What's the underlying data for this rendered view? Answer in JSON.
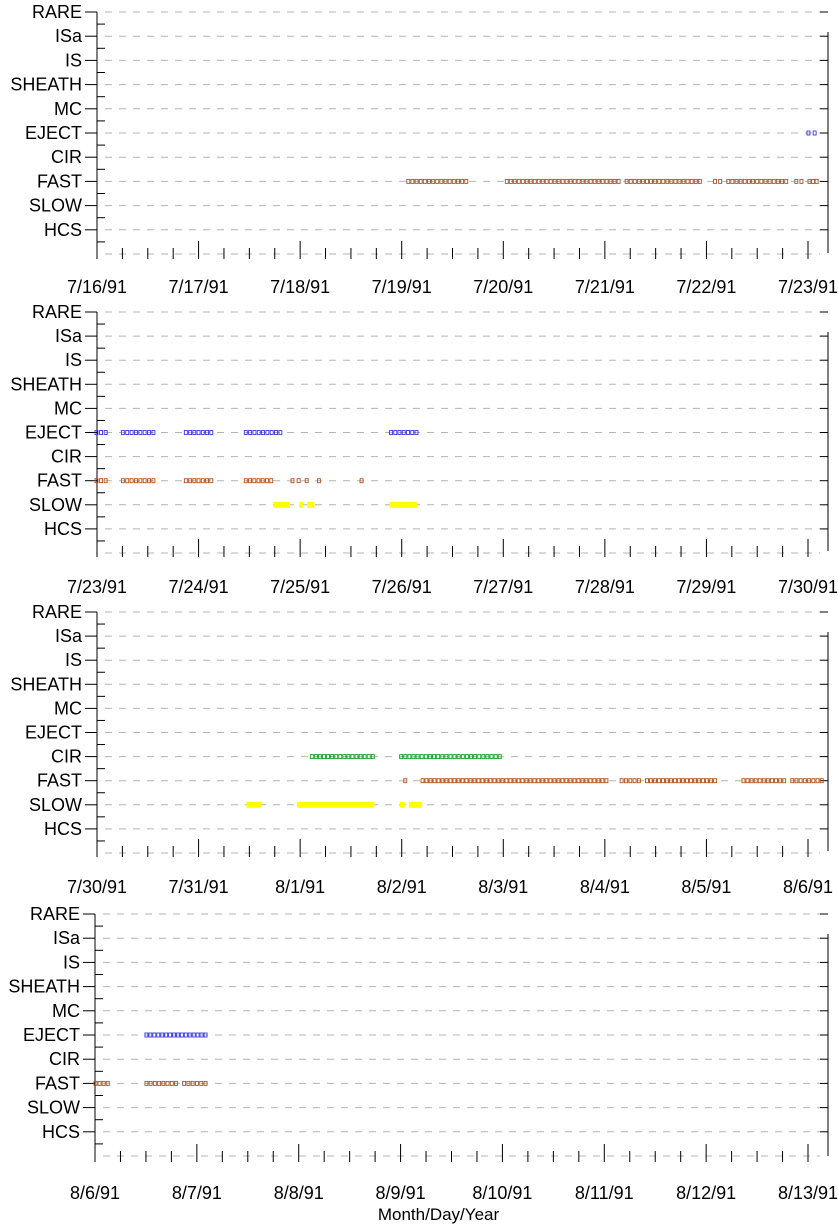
{
  "chart_data": [
    {
      "type": "scatter",
      "x_start": "7/16/91",
      "x_end": "7/23/91",
      "x_tick_labels": [
        "7/16/91",
        "7/17/91",
        "7/18/91",
        "7/19/91",
        "7/20/91",
        "7/21/91",
        "7/22/91",
        "7/23/91"
      ],
      "y_categories": [
        "RARE",
        "ISa",
        "IS",
        "SHEATH",
        "MC",
        "EJECT",
        "CIR",
        "FAST",
        "SLOW",
        "HCS"
      ],
      "grid": true,
      "segments": [
        {
          "category": "EJECT",
          "from": 6.99,
          "to": 7.08
        },
        {
          "category": "FAST",
          "from": 3.05,
          "to": 3.65
        },
        {
          "category": "FAST",
          "from": 4.02,
          "to": 5.15
        },
        {
          "category": "FAST",
          "from": 5.2,
          "to": 5.95
        },
        {
          "category": "FAST",
          "from": 6.07,
          "to": 6.15
        },
        {
          "category": "FAST",
          "from": 6.2,
          "to": 6.8
        },
        {
          "category": "FAST",
          "from": 6.87,
          "to": 6.95
        },
        {
          "category": "FAST",
          "from": 7.0,
          "to": 7.1
        }
      ]
    },
    {
      "type": "scatter",
      "x_start": "7/23/91",
      "x_end": "7/30/91",
      "x_tick_labels": [
        "7/23/91",
        "7/24/91",
        "7/25/91",
        "7/26/91",
        "7/27/91",
        "7/28/91",
        "7/29/91",
        "7/30/91"
      ],
      "y_categories": [
        "RARE",
        "ISa",
        "IS",
        "SHEATH",
        "MC",
        "EJECT",
        "CIR",
        "FAST",
        "SLOW",
        "HCS"
      ],
      "grid": true,
      "segments": [
        {
          "category": "EJECT",
          "from": -0.02,
          "to": 0.1
        },
        {
          "category": "EJECT",
          "from": 0.24,
          "to": 0.57
        },
        {
          "category": "EJECT",
          "from": 0.86,
          "to": 1.14
        },
        {
          "category": "EJECT",
          "from": 1.45,
          "to": 1.82
        },
        {
          "category": "EJECT",
          "from": 2.88,
          "to": 3.16
        },
        {
          "category": "FAST",
          "from": -0.02,
          "to": 0.1
        },
        {
          "category": "FAST",
          "from": 0.24,
          "to": 0.57
        },
        {
          "category": "FAST",
          "from": 0.86,
          "to": 1.14
        },
        {
          "category": "FAST",
          "from": 1.45,
          "to": 1.73
        },
        {
          "category": "FAST",
          "from": 1.91,
          "to": 2.0
        },
        {
          "category": "FAST",
          "from": 2.05,
          "to": 2.07
        },
        {
          "category": "FAST",
          "from": 2.17,
          "to": 2.19
        },
        {
          "category": "FAST",
          "from": 2.59,
          "to": 2.61
        },
        {
          "category": "SLOW",
          "from": 1.74,
          "to": 1.9
        },
        {
          "category": "SLOW",
          "from": 1.99,
          "to": 2.03
        },
        {
          "category": "SLOW",
          "from": 2.07,
          "to": 2.14
        },
        {
          "category": "SLOW",
          "from": 2.88,
          "to": 3.15
        }
      ]
    },
    {
      "type": "scatter",
      "x_start": "7/30/91",
      "x_end": "8/6/91",
      "x_tick_labels": [
        "7/30/91",
        "7/31/91",
        "8/1/91",
        "8/2/91",
        "8/3/91",
        "8/4/91",
        "8/5/91",
        "8/6/91"
      ],
      "y_categories": [
        "RARE",
        "ISa",
        "IS",
        "SHEATH",
        "MC",
        "EJECT",
        "CIR",
        "FAST",
        "SLOW",
        "HCS"
      ],
      "grid": true,
      "segments": [
        {
          "category": "CIR",
          "from": 2.1,
          "to": 2.73
        },
        {
          "category": "CIR",
          "from": 2.98,
          "to": 3.98
        },
        {
          "category": "FAST",
          "from": 3.02,
          "to": 3.05
        },
        {
          "category": "FAST",
          "from": 3.19,
          "to": 5.03
        },
        {
          "category": "FAST",
          "from": 5.15,
          "to": 5.35
        },
        {
          "category": "FAST",
          "from": 5.4,
          "to": 6.1
        },
        {
          "category": "FAST",
          "from": 6.35,
          "to": 6.78
        },
        {
          "category": "FAST",
          "from": 6.83,
          "to": 7.15
        },
        {
          "category": "SLOW",
          "from": 1.47,
          "to": 1.62
        },
        {
          "category": "SLOW",
          "from": 1.97,
          "to": 2.73
        },
        {
          "category": "SLOW",
          "from": 2.98,
          "to": 3.03
        },
        {
          "category": "SLOW",
          "from": 3.07,
          "to": 3.2
        }
      ]
    },
    {
      "type": "scatter",
      "x_start": "8/6/91",
      "x_end": "8/13/91",
      "x_tick_labels": [
        "8/6/91",
        "8/7/91",
        "8/8/91",
        "8/9/91",
        "8/10/91",
        "8/11/91",
        "8/12/91",
        "8/13/91"
      ],
      "y_categories": [
        "RARE",
        "ISa",
        "IS",
        "SHEATH",
        "MC",
        "EJECT",
        "CIR",
        "FAST",
        "SLOW",
        "HCS"
      ],
      "grid": true,
      "xlabel": "Month/Day/Year",
      "segments": [
        {
          "category": "EJECT",
          "from": 0.49,
          "to": 1.1
        },
        {
          "category": "FAST",
          "from": -0.01,
          "to": 0.14
        },
        {
          "category": "FAST",
          "from": 0.49,
          "to": 0.81
        },
        {
          "category": "FAST",
          "from": 0.86,
          "to": 1.1
        }
      ]
    }
  ],
  "colors": {
    "EJECT": "#3a3adc",
    "FAST": "#b3521f",
    "CIR": "#16a02c",
    "SLOW": "#ffff00",
    "grid": "#b4b4b4",
    "axis": "#000000"
  }
}
